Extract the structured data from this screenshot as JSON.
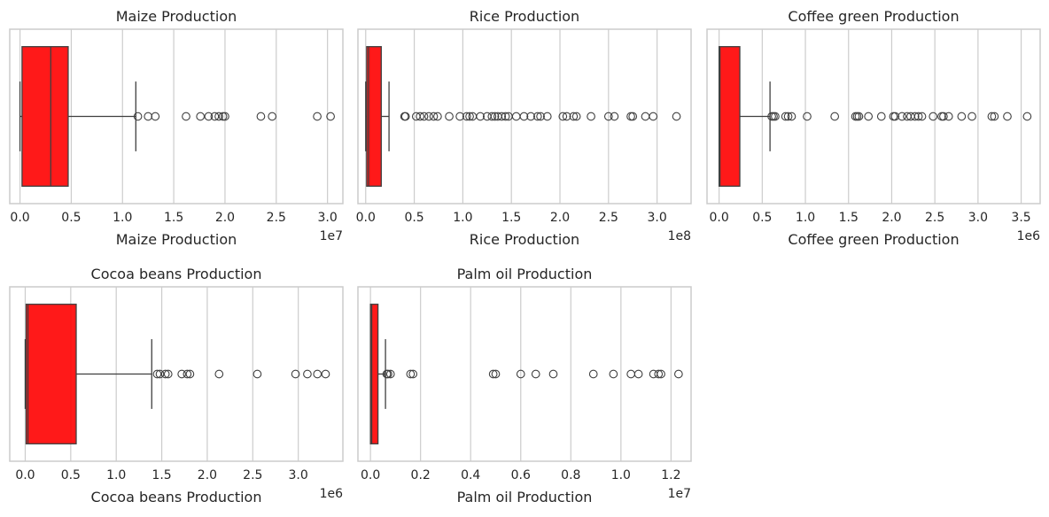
{
  "chart_data": [
    {
      "type": "box",
      "orientation": "horizontal",
      "title": "Maize Production",
      "xlabel": "Maize Production",
      "x_offset_label": "1e7",
      "xlim": [
        -0.1,
        3.15
      ],
      "xticks": [
        "0.0",
        "0.5",
        "1.0",
        "1.5",
        "2.0",
        "2.5",
        "3.0"
      ],
      "xtick_values": [
        0,
        0.5,
        1.0,
        1.5,
        2.0,
        2.5,
        3.0
      ],
      "grid": "vertical",
      "box_color": "#ff0000",
      "box": {
        "whisker_low": 0.0,
        "q1": 0.02,
        "median": 0.3,
        "q3": 0.47,
        "whisker_high": 1.13
      },
      "outliers": [
        1.15,
        1.25,
        1.32,
        1.62,
        1.76,
        1.84,
        1.9,
        1.94,
        1.98,
        2.0,
        2.35,
        2.46,
        2.9,
        3.03
      ]
    },
    {
      "type": "box",
      "orientation": "horizontal",
      "title": "Rice Production",
      "xlabel": "Rice Production",
      "x_offset_label": "1e8",
      "xlim": [
        -0.08,
        3.35
      ],
      "xticks": [
        "0.0",
        "0.5",
        "1.0",
        "1.5",
        "2.0",
        "2.5",
        "3.0"
      ],
      "xtick_values": [
        0,
        0.5,
        1.0,
        1.5,
        2.0,
        2.5,
        3.0
      ],
      "grid": "vertical",
      "box_color": "#ff0000",
      "box": {
        "whisker_low": 0.0,
        "q1": 0.01,
        "median": 0.03,
        "q3": 0.16,
        "whisker_high": 0.24
      },
      "outliers": [
        0.4,
        0.41,
        0.52,
        0.56,
        0.6,
        0.65,
        0.7,
        0.74,
        0.86,
        0.97,
        1.04,
        1.07,
        1.1,
        1.18,
        1.25,
        1.3,
        1.33,
        1.36,
        1.4,
        1.44,
        1.47,
        1.55,
        1.63,
        1.7,
        1.77,
        1.8,
        1.87,
        2.03,
        2.07,
        2.14,
        2.17,
        2.32,
        2.5,
        2.56,
        2.73,
        2.75,
        2.88,
        2.96,
        3.2
      ]
    },
    {
      "type": "box",
      "orientation": "horizontal",
      "title": "Coffee green Production",
      "xlabel": "Coffee green Production",
      "x_offset_label": "1e6",
      "xlim": [
        -0.14,
        3.72
      ],
      "xticks": [
        "0.0",
        "0.5",
        "1.0",
        "1.5",
        "2.0",
        "2.5",
        "3.0",
        "3.5"
      ],
      "xtick_values": [
        0,
        0.5,
        1.0,
        1.5,
        2.0,
        2.5,
        3.0,
        3.5
      ],
      "grid": "vertical",
      "box_color": "#ff0000",
      "box": {
        "whisker_low": 0.0,
        "q1": 0.0,
        "median": 0.01,
        "q3": 0.24,
        "whisker_high": 0.59
      },
      "outliers": [
        0.61,
        0.63,
        0.65,
        0.77,
        0.8,
        0.84,
        1.02,
        1.34,
        1.58,
        1.6,
        1.62,
        1.73,
        1.88,
        2.02,
        2.04,
        2.12,
        2.18,
        2.22,
        2.27,
        2.31,
        2.35,
        2.48,
        2.58,
        2.6,
        2.66,
        2.81,
        2.93,
        3.16,
        3.19,
        3.34,
        3.57
      ]
    },
    {
      "type": "box",
      "orientation": "horizontal",
      "title": "Cocoa beans Production",
      "xlabel": "Cocoa beans Production",
      "x_offset_label": "1e6",
      "xlim": [
        -0.17,
        3.49
      ],
      "xticks": [
        "0.0",
        "0.5",
        "1.0",
        "1.5",
        "2.0",
        "2.5",
        "3.0"
      ],
      "xtick_values": [
        0,
        0.5,
        1.0,
        1.5,
        2.0,
        2.5,
        3.0
      ],
      "grid": "vertical",
      "box_color": "#ff0000",
      "box": {
        "whisker_low": 0.0,
        "q1": 0.01,
        "median": 0.03,
        "q3": 0.56,
        "whisker_high": 1.39
      },
      "outliers": [
        1.45,
        1.48,
        1.54,
        1.57,
        1.72,
        1.78,
        1.81,
        2.13,
        2.55,
        2.97,
        3.1,
        3.21,
        3.3
      ]
    },
    {
      "type": "box",
      "orientation": "horizontal",
      "title": "Palm oil Production",
      "xlabel": "Palm oil Production",
      "x_offset_label": "1e7",
      "xlim": [
        -0.05,
        1.28
      ],
      "xticks": [
        "0.0",
        "0.2",
        "0.4",
        "0.6",
        "0.8",
        "1.0",
        "1.2"
      ],
      "xtick_values": [
        0,
        0.2,
        0.4,
        0.6,
        0.8,
        1.0,
        1.2
      ],
      "grid": "vertical",
      "box_color": "#ff0000",
      "box": {
        "whisker_low": 0.0,
        "q1": 0.0,
        "median": 0.005,
        "q3": 0.03,
        "whisker_high": 0.06
      },
      "outliers": [
        0.065,
        0.07,
        0.08,
        0.16,
        0.17,
        0.49,
        0.5,
        0.6,
        0.66,
        0.73,
        0.89,
        0.97,
        1.04,
        1.07,
        1.13,
        1.15,
        1.16,
        1.23
      ]
    }
  ]
}
